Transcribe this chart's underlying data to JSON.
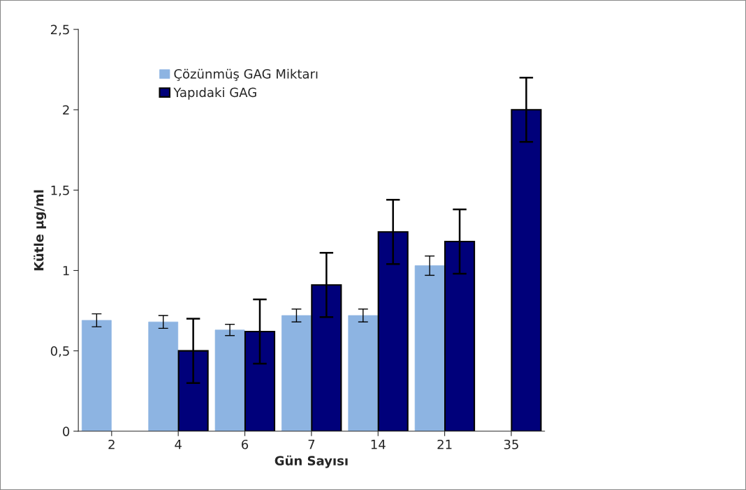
{
  "chart_data": {
    "type": "bar",
    "xlabel": "Gün Sayısı",
    "ylabel": "Kütle µg/ml",
    "categories": [
      "2",
      "4",
      "6",
      "7",
      "14",
      "21",
      "35"
    ],
    "series": [
      {
        "name": "Çözünmüş GAG Miktarı",
        "color": "#8db4e2",
        "values": [
          0.69,
          0.68,
          0.63,
          0.72,
          0.72,
          1.03,
          null
        ],
        "errors": [
          0.04,
          0.04,
          0.035,
          0.04,
          0.04,
          0.06,
          null
        ]
      },
      {
        "name": "Yapıdaki GAG",
        "color": "#00007a",
        "values": [
          null,
          0.5,
          0.62,
          0.91,
          1.24,
          1.18,
          2.0
        ],
        "errors": [
          null,
          0.2,
          0.2,
          0.2,
          0.2,
          0.2,
          0.2
        ]
      }
    ],
    "ylim": [
      0,
      2.5
    ],
    "yticks": [
      0,
      {
        "value": 0.5,
        "label": "0,5"
      },
      1,
      {
        "value": 1.5,
        "label": "1,5"
      },
      2,
      {
        "value": 2.5,
        "label": "2,5"
      }
    ],
    "grid": false,
    "legend": "top left"
  }
}
